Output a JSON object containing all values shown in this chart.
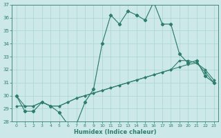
{
  "xlabel": "Humidex (Indice chaleur)",
  "x": [
    0,
    1,
    2,
    3,
    4,
    5,
    6,
    7,
    8,
    9,
    10,
    11,
    12,
    13,
    14,
    15,
    16,
    17,
    18,
    19,
    20,
    21,
    22,
    23
  ],
  "line1": [
    30.0,
    28.8,
    28.8,
    29.5,
    29.2,
    28.7,
    27.8,
    27.8,
    29.5,
    30.5,
    34.0,
    36.2,
    35.5,
    36.5,
    36.2,
    35.8,
    37.2,
    35.5,
    35.5,
    33.2,
    32.5,
    32.7,
    31.5,
    31.0
  ],
  "line2": [
    30.0,
    28.8,
    28.8,
    29.5,
    29.2,
    28.7,
    27.8,
    27.8,
    29.5,
    30.5,
    34.0,
    36.2,
    35.5,
    36.5,
    36.2,
    35.8,
    37.2,
    35.5,
    35.5,
    33.2,
    32.5,
    32.7,
    31.5,
    31.0
  ],
  "line3": [
    30.0,
    29.2,
    29.2,
    29.5,
    29.2,
    29.2,
    29.5,
    29.8,
    30.0,
    30.2,
    30.4,
    30.6,
    30.8,
    31.0,
    31.2,
    31.4,
    31.6,
    31.8,
    32.0,
    32.2,
    32.4,
    32.5,
    31.8,
    31.0
  ],
  "line4": [
    29.2,
    29.2,
    29.2,
    29.5,
    29.2,
    29.2,
    29.5,
    29.8,
    30.0,
    30.2,
    30.4,
    30.6,
    30.8,
    31.0,
    31.2,
    31.4,
    31.6,
    31.8,
    32.0,
    32.7,
    32.7,
    32.5,
    32.0,
    31.2
  ],
  "color": "#2e7d6b",
  "bg_color": "#cce8e8",
  "grid_color": "#a8d4d4",
  "ylim": [
    28,
    37
  ],
  "xlim": [
    -0.5,
    23.5
  ],
  "yticks": [
    28,
    29,
    30,
    31,
    32,
    33,
    34,
    35,
    36,
    37
  ],
  "xticks": [
    0,
    1,
    2,
    3,
    4,
    5,
    6,
    7,
    8,
    9,
    10,
    11,
    12,
    13,
    14,
    15,
    16,
    17,
    18,
    19,
    20,
    21,
    22,
    23
  ]
}
